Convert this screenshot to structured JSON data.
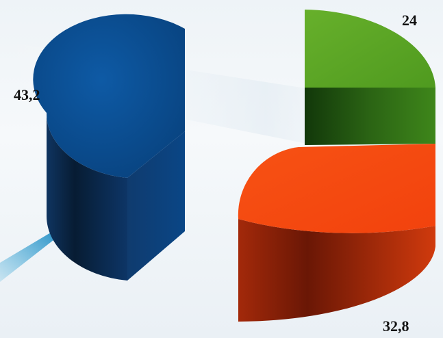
{
  "chart_data": {
    "type": "pie",
    "style": "3d-exploded",
    "categories": [
      "",
      "",
      ""
    ],
    "values": [
      43.2,
      24,
      32.8
    ],
    "data_labels": [
      "43,2",
      "24",
      "32,8"
    ],
    "colors": [
      "#0b4a8c",
      "#5aa022",
      "#f4470f"
    ],
    "title": "",
    "legend": "none"
  }
}
